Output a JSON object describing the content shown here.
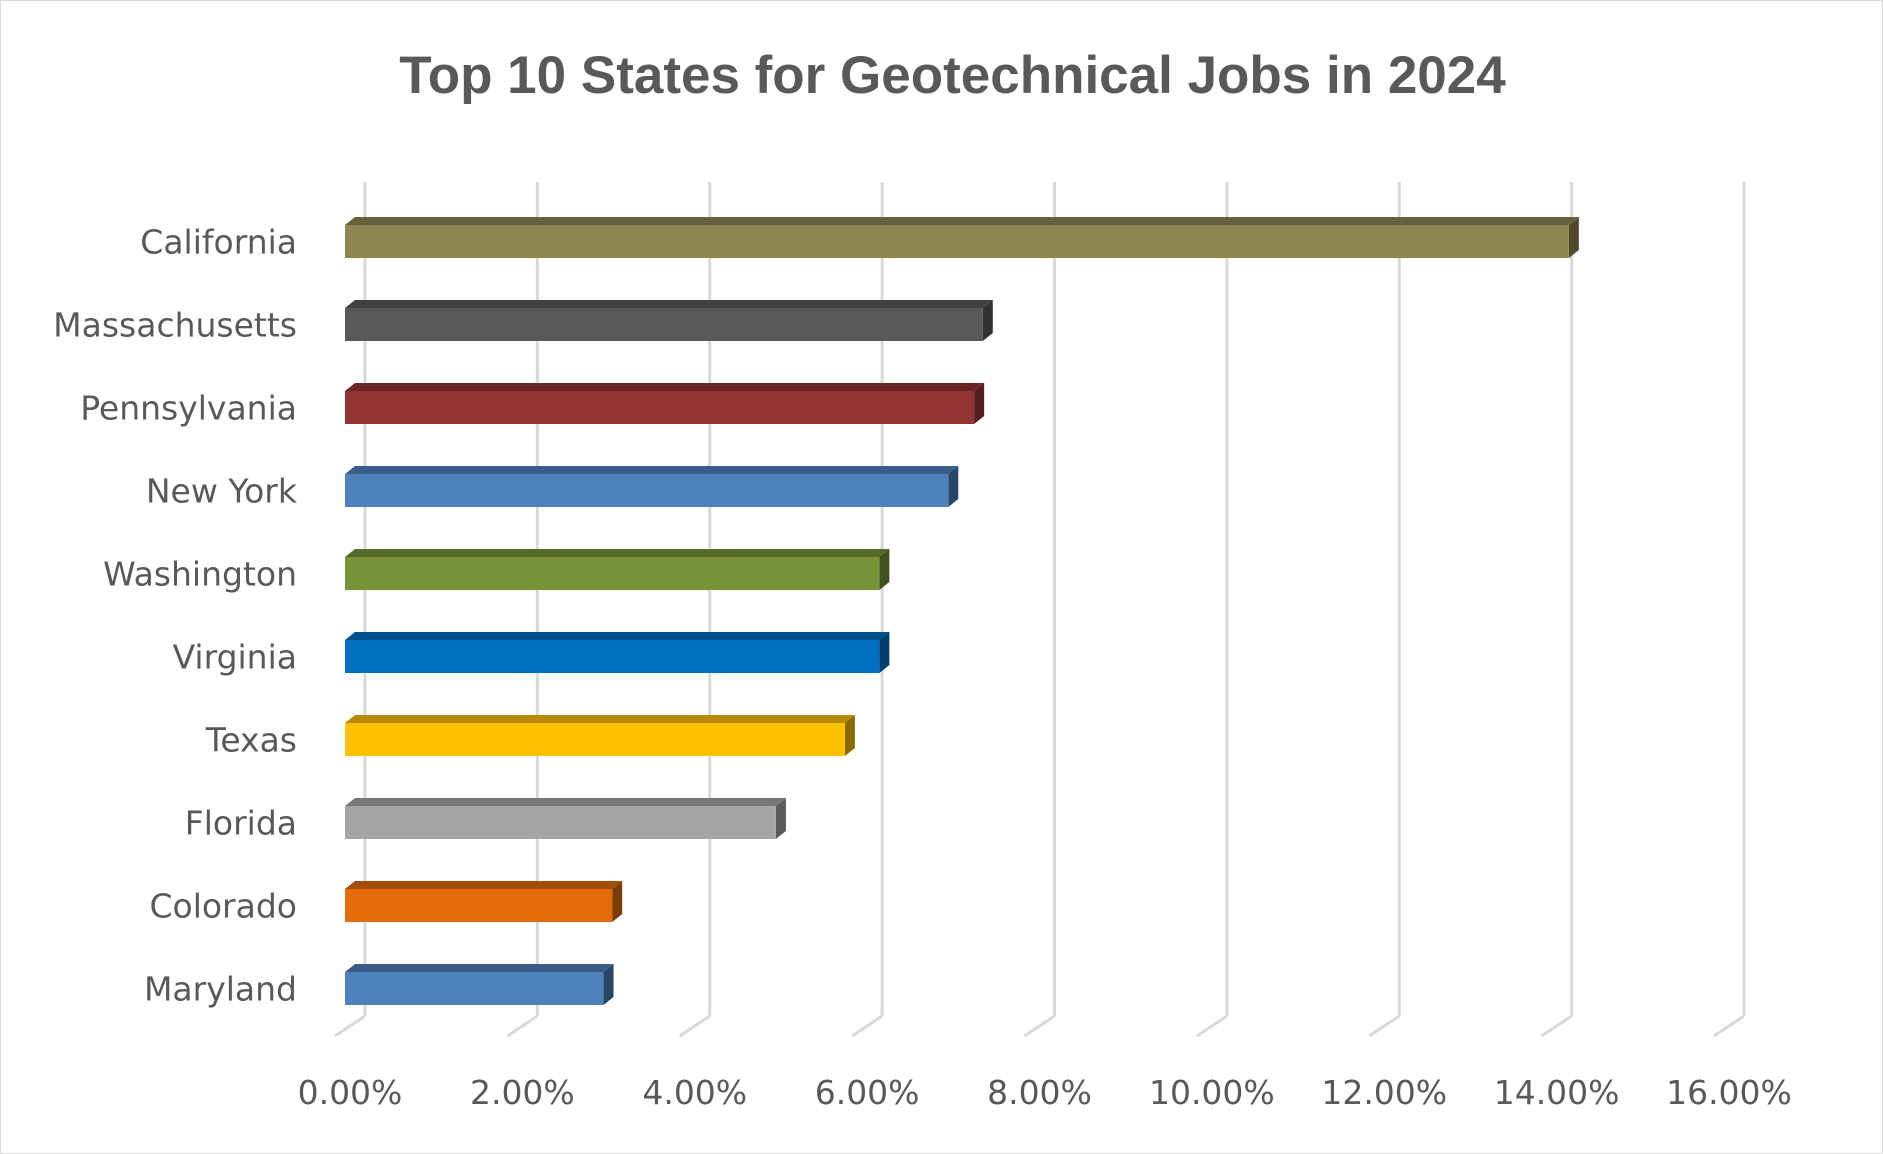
{
  "chart_data": {
    "type": "bar",
    "orientation": "horizontal",
    "title": "Top 10 States for Geotechnical Jobs in 2024",
    "categories": [
      "California",
      "Massachusetts",
      "Pennsylvania",
      "New York",
      "Washington",
      "Virginia",
      "Texas",
      "Florida",
      "Colorado",
      "Maryland"
    ],
    "values": [
      14.2,
      7.4,
      7.3,
      7.0,
      6.2,
      6.2,
      5.8,
      5.0,
      3.1,
      3.0
    ],
    "colors": [
      "#8f8752",
      "#595959",
      "#933434",
      "#4f81bd",
      "#779438",
      "#0070c0",
      "#ffc000",
      "#a5a5a5",
      "#e36c09",
      "#4f81bd"
    ],
    "xlim": [
      0,
      16
    ],
    "xticks": [
      "0.00%",
      "2.00%",
      "4.00%",
      "6.00%",
      "8.00%",
      "10.00%",
      "12.00%",
      "14.00%",
      "16.00%"
    ],
    "xlabel": "",
    "ylabel": "",
    "grid": true,
    "legend": "none"
  }
}
